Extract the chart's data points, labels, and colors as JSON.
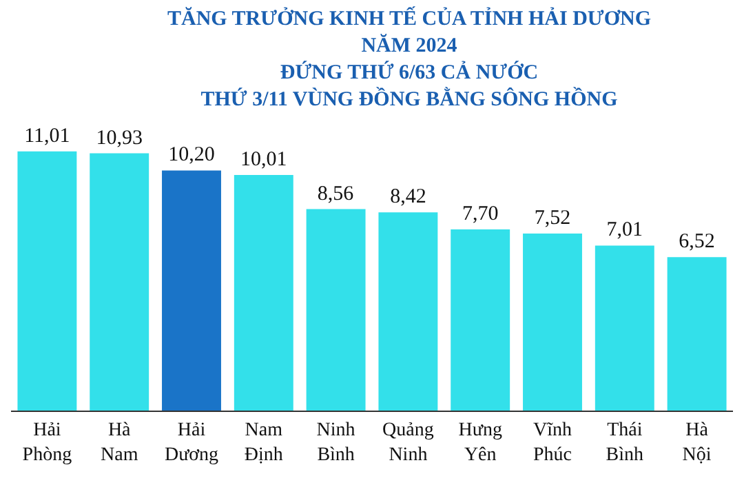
{
  "chart_data": {
    "type": "bar",
    "title": "TĂNG TRƯỞNG KINH TẾ CỦA TỈNH HẢI DƯƠNG\nNĂM 2024\nĐỨNG THỨ 6/63 CẢ NƯỚC\nTHỨ 3/11 VÙNG ĐỒNG BẰNG SÔNG HỒNG",
    "categories": [
      "Hải\nPhòng",
      "Hà\nNam",
      "Hải\nDương",
      "Nam\nĐịnh",
      "Ninh\nBình",
      "Quảng\nNinh",
      "Hưng\nYên",
      "Vĩnh\nPhúc",
      "Thái\nBình",
      "Hà\nNội"
    ],
    "values": [
      11.01,
      10.93,
      10.2,
      10.01,
      8.56,
      8.42,
      7.7,
      7.52,
      7.01,
      6.52
    ],
    "value_labels": [
      "11,01",
      "10,93",
      "10,20",
      "10,01",
      "8,56",
      "8,42",
      "7,70",
      "7,52",
      "7,01",
      "6,52"
    ],
    "colors": [
      "#33e0ea",
      "#33e0ea",
      "#1a74c8",
      "#33e0ea",
      "#33e0ea",
      "#33e0ea",
      "#33e0ea",
      "#33e0ea",
      "#33e0ea",
      "#33e0ea"
    ],
    "legend": false
  }
}
